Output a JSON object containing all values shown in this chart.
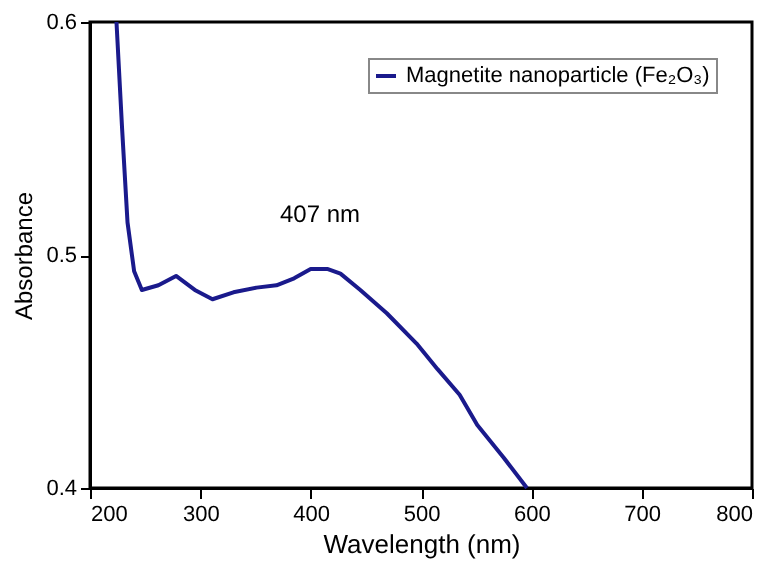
{
  "chart_data": {
    "type": "line",
    "xlabel": "Wavelength (nm)",
    "ylabel": "Absorbance",
    "xlim": [
      200,
      800
    ],
    "xticks": [
      200,
      300,
      400,
      500,
      600,
      700,
      800
    ],
    "ylim": [
      0.4,
      0.6
    ],
    "yticks": [
      0.4,
      0.5,
      0.6
    ],
    "grid": false,
    "legend": "top right",
    "marker": "none",
    "line_style": "solid",
    "annotations": [
      "407 nm"
    ],
    "series": [
      {
        "name": "Magnetite nanoparticle (Fe₂O₃)",
        "color": "#1a1a8c",
        "x": [
          224,
          229,
          234,
          240,
          247,
          262,
          278,
          295,
          311,
          330,
          351,
          369,
          385,
          400,
          415,
          427,
          445,
          469,
          496,
          515,
          535,
          551,
          575,
          596
        ],
        "values": [
          0.6,
          0.555,
          0.514,
          0.493,
          0.485,
          0.487,
          0.491,
          0.485,
          0.481,
          0.484,
          0.486,
          0.487,
          0.49,
          0.494,
          0.494,
          0.492,
          0.485,
          0.475,
          0.462,
          0.451,
          0.44,
          0.427,
          0.413,
          0.4
        ]
      }
    ]
  }
}
